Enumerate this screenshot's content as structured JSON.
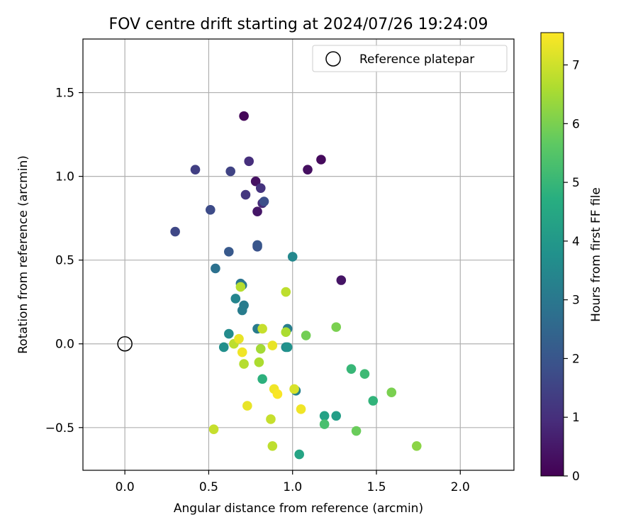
{
  "chart_data": {
    "type": "scatter",
    "title": "FOV centre drift starting at 2024/07/26 19:24:09",
    "xlabel": "Angular distance from reference (arcmin)",
    "ylabel": "Rotation from reference (arcmin)",
    "xlim": [
      -0.25,
      2.32
    ],
    "ylim": [
      -0.755,
      1.82
    ],
    "xticks": [
      0.0,
      0.5,
      1.0,
      1.5,
      2.0
    ],
    "xtick_labels": [
      "0.0",
      "0.5",
      "1.0",
      "1.5",
      "2.0"
    ],
    "yticks": [
      -0.5,
      0.0,
      0.5,
      1.0,
      1.5
    ],
    "ytick_labels": [
      "−0.5",
      "0.0",
      "0.5",
      "1.0",
      "1.5"
    ],
    "grid": true,
    "legend": {
      "placement": "upper-right",
      "entries": [
        "Reference platepar"
      ]
    },
    "reference_point": {
      "x": 0.0,
      "y": 0.0,
      "label": "Reference platepar"
    },
    "colorbar": {
      "label": "Hours from first FF file",
      "colormap": "viridis",
      "range": [
        0,
        7.55
      ],
      "ticks": [
        0,
        1,
        2,
        3,
        4,
        5,
        6,
        7
      ],
      "tick_labels": [
        "0",
        "1",
        "2",
        "3",
        "4",
        "5",
        "6",
        "7"
      ]
    },
    "points": [
      {
        "x": 0.71,
        "y": 1.36,
        "c": 0.1
      },
      {
        "x": 1.17,
        "y": 1.1,
        "c": 0.2
      },
      {
        "x": 1.09,
        "y": 1.04,
        "c": 0.3
      },
      {
        "x": 0.78,
        "y": 0.97,
        "c": 0.35
      },
      {
        "x": 0.79,
        "y": 0.79,
        "c": 0.45
      },
      {
        "x": 1.29,
        "y": 0.38,
        "c": 0.4
      },
      {
        "x": 0.74,
        "y": 1.09,
        "c": 1.0
      },
      {
        "x": 0.82,
        "y": 0.84,
        "c": 0.9
      },
      {
        "x": 0.81,
        "y": 0.93,
        "c": 1.1
      },
      {
        "x": 0.72,
        "y": 0.89,
        "c": 1.2
      },
      {
        "x": 0.42,
        "y": 1.04,
        "c": 1.4
      },
      {
        "x": 0.63,
        "y": 1.03,
        "c": 1.5
      },
      {
        "x": 0.3,
        "y": 0.67,
        "c": 1.6
      },
      {
        "x": 0.51,
        "y": 0.8,
        "c": 1.7
      },
      {
        "x": 0.83,
        "y": 0.85,
        "c": 1.8
      },
      {
        "x": 0.79,
        "y": 0.58,
        "c": 1.9
      },
      {
        "x": 0.79,
        "y": 0.59,
        "c": 2.0
      },
      {
        "x": 0.62,
        "y": 0.55,
        "c": 2.1
      },
      {
        "x": 0.54,
        "y": 0.45,
        "c": 2.8
      },
      {
        "x": 0.69,
        "y": 0.36,
        "c": 2.9
      },
      {
        "x": 0.7,
        "y": 0.35,
        "c": 3.0
      },
      {
        "x": 0.71,
        "y": 0.23,
        "c": 3.1
      },
      {
        "x": 0.7,
        "y": 0.2,
        "c": 3.15
      },
      {
        "x": 0.66,
        "y": 0.27,
        "c": 3.4
      },
      {
        "x": 1.0,
        "y": 0.52,
        "c": 3.5
      },
      {
        "x": 0.62,
        "y": 0.06,
        "c": 3.6
      },
      {
        "x": 0.79,
        "y": 0.09,
        "c": 3.1
      },
      {
        "x": 0.97,
        "y": 0.09,
        "c": 3.2
      },
      {
        "x": 0.59,
        "y": -0.02,
        "c": 3.7
      },
      {
        "x": 0.96,
        "y": -0.02,
        "c": 3.6
      },
      {
        "x": 0.97,
        "y": -0.02,
        "c": 3.8
      },
      {
        "x": 1.02,
        "y": -0.28,
        "c": 3.3
      },
      {
        "x": 1.19,
        "y": -0.43,
        "c": 4.3
      },
      {
        "x": 1.26,
        "y": -0.43,
        "c": 4.2
      },
      {
        "x": 1.04,
        "y": -0.66,
        "c": 4.4
      },
      {
        "x": 0.82,
        "y": -0.21,
        "c": 4.8
      },
      {
        "x": 1.48,
        "y": -0.34,
        "c": 4.9
      },
      {
        "x": 1.35,
        "y": -0.15,
        "c": 5.0
      },
      {
        "x": 1.43,
        "y": -0.18,
        "c": 5.1
      },
      {
        "x": 1.19,
        "y": -0.48,
        "c": 5.3
      },
      {
        "x": 1.08,
        "y": 0.05,
        "c": 5.9
      },
      {
        "x": 1.26,
        "y": 0.1,
        "c": 6.0
      },
      {
        "x": 1.38,
        "y": -0.52,
        "c": 5.8
      },
      {
        "x": 1.59,
        "y": -0.29,
        "c": 6.0
      },
      {
        "x": 1.74,
        "y": -0.61,
        "c": 6.2
      },
      {
        "x": 0.96,
        "y": 0.31,
        "c": 6.8
      },
      {
        "x": 0.69,
        "y": 0.34,
        "c": 6.7
      },
      {
        "x": 0.82,
        "y": 0.09,
        "c": 6.9
      },
      {
        "x": 0.96,
        "y": 0.07,
        "c": 6.6
      },
      {
        "x": 0.65,
        "y": 0.0,
        "c": 6.8
      },
      {
        "x": 0.81,
        "y": -0.03,
        "c": 6.5
      },
      {
        "x": 0.8,
        "y": -0.11,
        "c": 6.6
      },
      {
        "x": 0.71,
        "y": -0.12,
        "c": 6.7
      },
      {
        "x": 0.53,
        "y": -0.51,
        "c": 6.9
      },
      {
        "x": 0.87,
        "y": -0.45,
        "c": 6.9
      },
      {
        "x": 0.88,
        "y": -0.61,
        "c": 6.8
      },
      {
        "x": 0.68,
        "y": 0.03,
        "c": 7.3
      },
      {
        "x": 0.7,
        "y": -0.05,
        "c": 7.4
      },
      {
        "x": 0.88,
        "y": -0.01,
        "c": 7.3
      },
      {
        "x": 0.89,
        "y": -0.27,
        "c": 7.4
      },
      {
        "x": 0.91,
        "y": -0.3,
        "c": 7.5
      },
      {
        "x": 1.01,
        "y": -0.27,
        "c": 7.1
      },
      {
        "x": 0.73,
        "y": -0.37,
        "c": 7.3
      },
      {
        "x": 1.05,
        "y": -0.39,
        "c": 7.4
      }
    ]
  }
}
